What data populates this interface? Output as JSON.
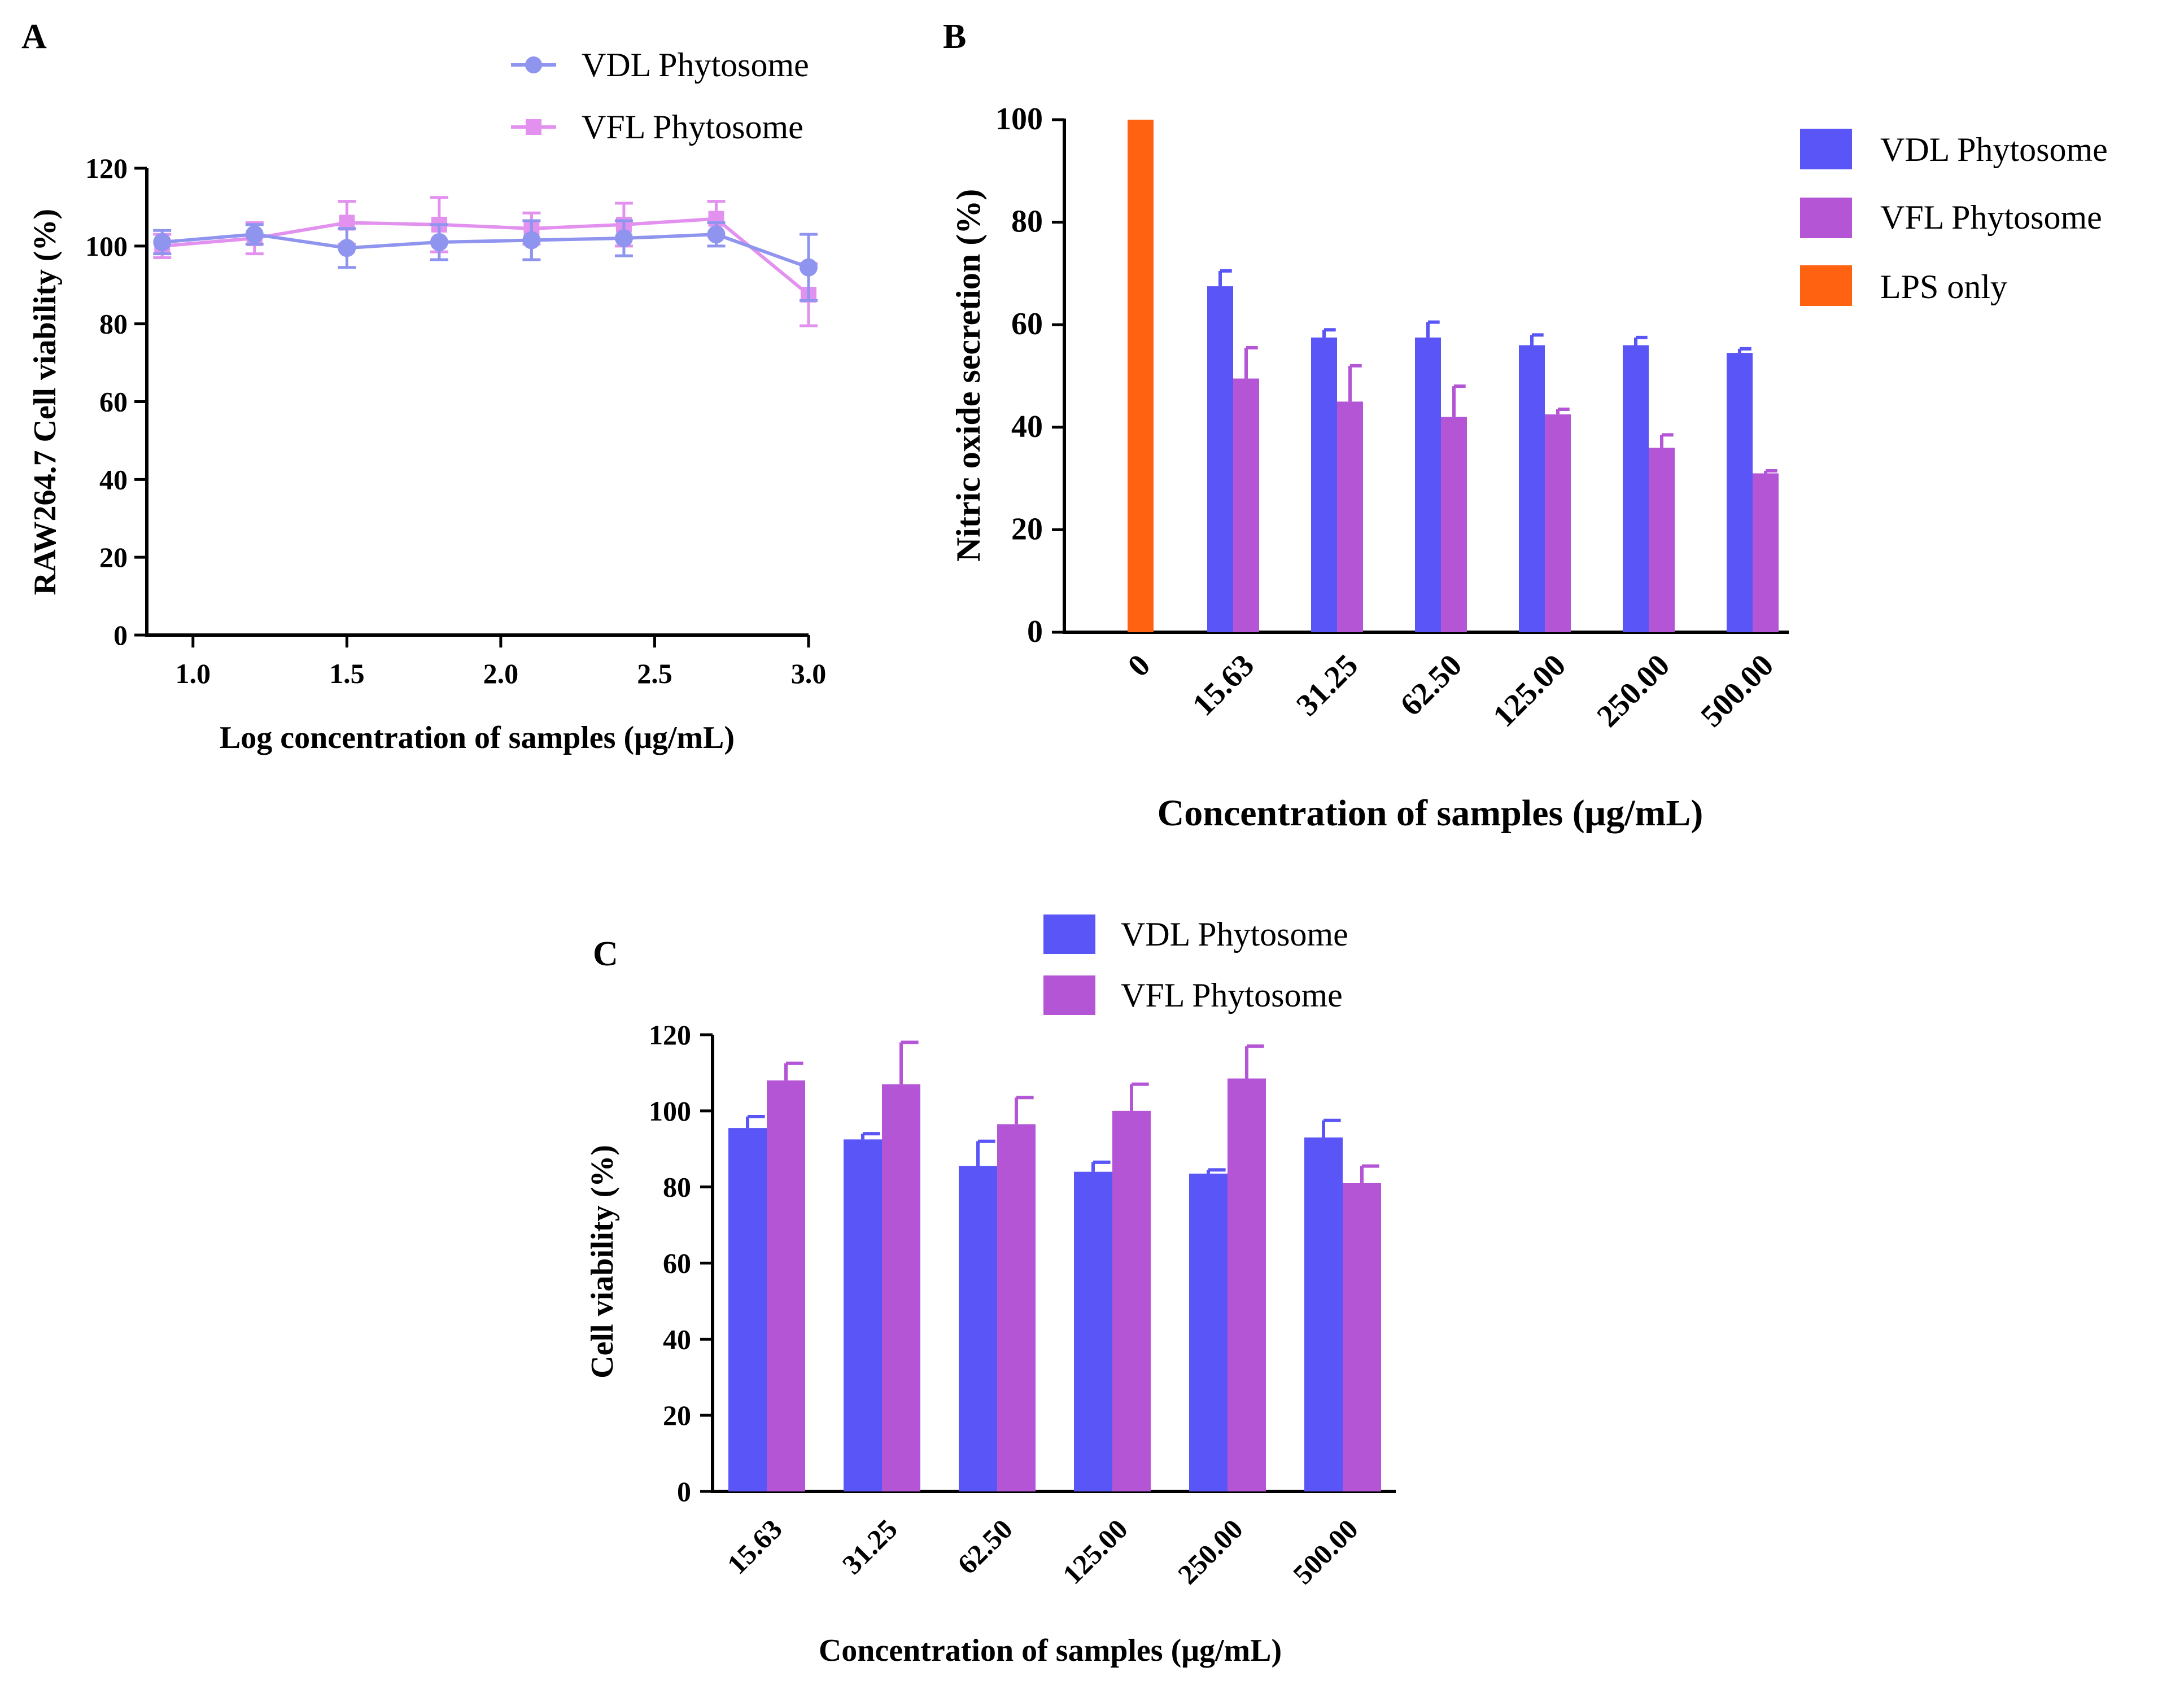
{
  "colors": {
    "vdl_line": "#8f95ee",
    "vfl_line": "#e391ef",
    "vdl_bar": "#5a55f7",
    "vfl_bar": "#b455d6",
    "lps_bar": "#ff6211"
  },
  "chart_data": [
    {
      "panel": "A",
      "type": "line",
      "xlabel": "Log concentration of samples (μg/mL)",
      "ylabel": "RAW264.7 Cell viability (%)",
      "xlim": [
        0.85,
        3.0
      ],
      "ylim": [
        0,
        120
      ],
      "xticks": [
        "1.0",
        "1.5",
        "2.0",
        "2.5",
        "3.0"
      ],
      "yticks": [
        "0",
        "20",
        "40",
        "60",
        "80",
        "100",
        "120"
      ],
      "x": [
        0.9,
        1.2,
        1.5,
        1.8,
        2.1,
        2.4,
        2.7,
        3.0
      ],
      "legend_position": "top-right",
      "series": [
        {
          "name": "VDL Phytosome",
          "marker": "circle",
          "values": [
            101,
            103,
            99.5,
            101,
            101.5,
            102,
            103,
            94.5
          ],
          "errors": [
            3,
            2.5,
            5,
            4.5,
            5,
            4.5,
            3,
            8.5
          ]
        },
        {
          "name": "VFL Phytosome",
          "marker": "square",
          "values": [
            100,
            102,
            106,
            105.5,
            104.5,
            105.5,
            107,
            87.5
          ],
          "errors": [
            3,
            4,
            5.5,
            7,
            4,
            5.5,
            4.5,
            8
          ]
        }
      ]
    },
    {
      "panel": "B",
      "type": "bar",
      "xlabel": "Concentration of samples (μg/mL)",
      "ylabel": "Nitric oxide secretion (%)",
      "ylim": [
        0,
        100
      ],
      "yticks": [
        "0",
        "20",
        "40",
        "60",
        "80",
        "100"
      ],
      "categories": [
        "0",
        "15.63",
        "31.25",
        "62.50",
        "125.00",
        "250.00",
        "500.00"
      ],
      "legend_position": "top-right",
      "series": [
        {
          "name": "VDL Phytosome",
          "values": [
            null,
            67.5,
            57.5,
            57.5,
            56,
            56,
            54.5
          ],
          "errors": [
            null,
            3,
            1.5,
            3,
            2,
            1.5,
            0.8
          ]
        },
        {
          "name": "VFL Phytosome",
          "values": [
            null,
            49.5,
            45,
            42,
            42.5,
            36,
            31
          ],
          "errors": [
            null,
            6,
            7,
            6,
            1,
            2.5,
            0.5
          ]
        },
        {
          "name": "LPS only",
          "values": [
            100,
            null,
            null,
            null,
            null,
            null,
            null
          ],
          "errors": [
            null,
            null,
            null,
            null,
            null,
            null,
            null
          ]
        }
      ]
    },
    {
      "panel": "C",
      "type": "bar",
      "xlabel": "Concentration of samples (μg/mL)",
      "ylabel": "Cell viability (%)",
      "ylim": [
        0,
        120
      ],
      "yticks": [
        "0",
        "20",
        "40",
        "60",
        "80",
        "100",
        "120"
      ],
      "categories": [
        "15.63",
        "31.25",
        "62.50",
        "125.00",
        "250.00",
        "500.00"
      ],
      "legend_position": "top",
      "series": [
        {
          "name": "VDL Phytosome",
          "values": [
            95.5,
            92.5,
            85.5,
            84,
            83.5,
            93
          ],
          "errors": [
            3,
            1.5,
            6.5,
            2.5,
            1,
            4.5
          ]
        },
        {
          "name": "VFL Phytosome",
          "values": [
            108,
            107,
            96.5,
            100,
            108.5,
            81
          ],
          "errors": [
            4.5,
            11,
            7,
            7,
            8.5,
            4.5
          ]
        }
      ]
    }
  ]
}
